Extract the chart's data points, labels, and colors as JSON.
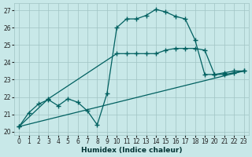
{
  "xlabel": "Humidex (Indice chaleur)",
  "bg_color": "#c8e8e8",
  "grid_color": "#a0c4c4",
  "line_color": "#006060",
  "xlim": [
    -0.5,
    23.5
  ],
  "ylim": [
    19.8,
    27.4
  ],
  "xticks": [
    0,
    1,
    2,
    3,
    4,
    5,
    6,
    7,
    8,
    9,
    10,
    11,
    12,
    13,
    14,
    15,
    16,
    17,
    18,
    19,
    20,
    21,
    22,
    23
  ],
  "yticks": [
    20,
    21,
    22,
    23,
    24,
    25,
    26,
    27
  ],
  "line1_x": [
    0,
    1,
    2,
    3,
    4,
    5,
    6,
    7,
    8,
    9,
    10,
    11,
    12,
    13,
    14,
    15,
    16,
    17,
    18,
    19,
    20,
    21,
    22,
    23
  ],
  "line1_y": [
    20.3,
    21.1,
    21.6,
    21.85,
    21.5,
    21.9,
    21.7,
    21.2,
    20.4,
    22.2,
    26.0,
    26.5,
    26.5,
    26.7,
    27.05,
    26.9,
    26.65,
    26.5,
    25.3,
    23.3,
    23.3,
    23.4,
    23.5,
    23.5
  ],
  "line2_x": [
    0,
    3,
    10,
    11,
    12,
    13,
    14,
    15,
    16,
    17,
    18,
    19,
    20,
    21,
    22,
    23
  ],
  "line2_y": [
    20.3,
    21.9,
    24.5,
    24.5,
    24.5,
    24.5,
    24.5,
    24.7,
    24.8,
    24.8,
    24.8,
    24.7,
    23.3,
    23.3,
    23.4,
    23.5
  ],
  "line3_x": [
    0,
    23
  ],
  "line3_y": [
    20.3,
    23.5
  ]
}
